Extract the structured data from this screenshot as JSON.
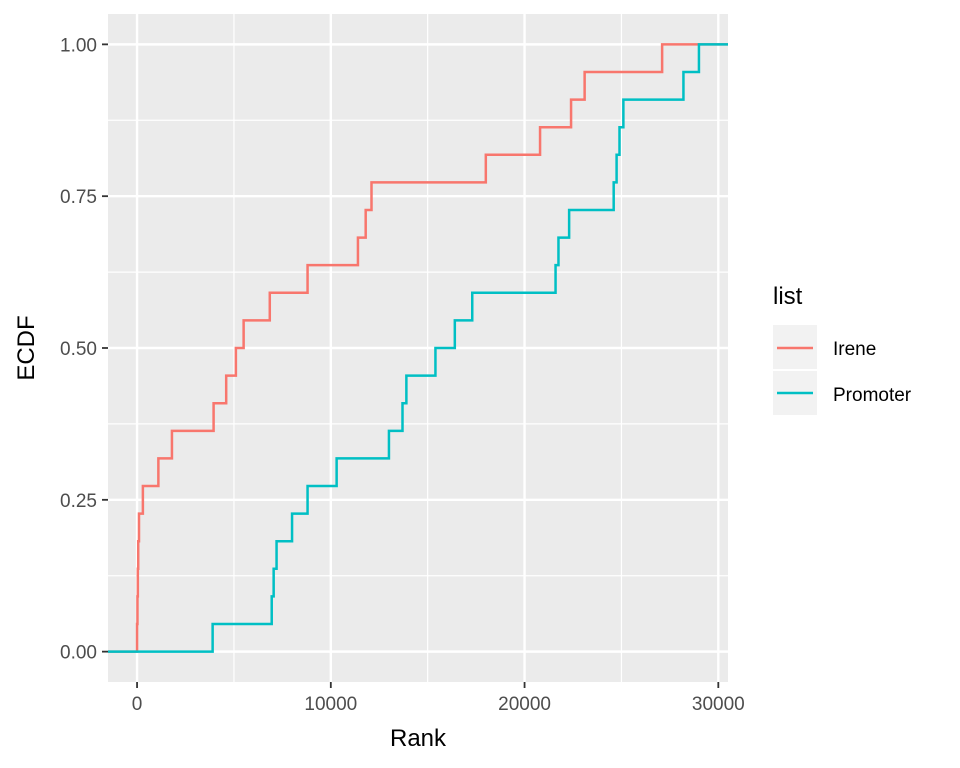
{
  "chart_data": {
    "type": "line",
    "step": true,
    "xlabel": "Rank",
    "ylabel": "ECDF",
    "xlim": [
      -1500,
      30500
    ],
    "ylim": [
      -0.05,
      1.05
    ],
    "x_ticks": [
      0,
      10000,
      20000,
      30000
    ],
    "x_tick_labels": [
      "0",
      "10000",
      "20000",
      "30000"
    ],
    "y_ticks": [
      0,
      0.25,
      0.5,
      0.75,
      1.0
    ],
    "y_tick_labels": [
      "0.00",
      "0.25",
      "0.50",
      "0.75",
      "1.00"
    ],
    "grid": true,
    "panel_background": "#EBEBEB",
    "legend": {
      "title": "list",
      "position": "right"
    },
    "series": [
      {
        "name": "Irene",
        "color": "#F8766D",
        "points": [
          [
            0,
            0.0455
          ],
          [
            20,
            0.0909
          ],
          [
            40,
            0.1364
          ],
          [
            60,
            0.1818
          ],
          [
            100,
            0.2273
          ],
          [
            300,
            0.2727
          ],
          [
            1100,
            0.3182
          ],
          [
            1800,
            0.3636
          ],
          [
            3950,
            0.4091
          ],
          [
            4600,
            0.4545
          ],
          [
            5100,
            0.5
          ],
          [
            5500,
            0.5455
          ],
          [
            6850,
            0.5909
          ],
          [
            8800,
            0.6364
          ],
          [
            11400,
            0.6818
          ],
          [
            11800,
            0.7273
          ],
          [
            12100,
            0.7727
          ],
          [
            18000,
            0.8182
          ],
          [
            20800,
            0.8636
          ],
          [
            22400,
            0.9091
          ],
          [
            23100,
            0.9545
          ],
          [
            27100,
            1.0
          ]
        ]
      },
      {
        "name": "Promoter",
        "color": "#00BFC4",
        "points": [
          [
            3900,
            0.0455
          ],
          [
            6950,
            0.0909
          ],
          [
            7050,
            0.1364
          ],
          [
            7200,
            0.1818
          ],
          [
            8000,
            0.2273
          ],
          [
            8800,
            0.2727
          ],
          [
            10300,
            0.3182
          ],
          [
            13000,
            0.3636
          ],
          [
            13700,
            0.4091
          ],
          [
            13900,
            0.4545
          ],
          [
            15400,
            0.5
          ],
          [
            16400,
            0.5455
          ],
          [
            17300,
            0.5909
          ],
          [
            21600,
            0.6364
          ],
          [
            21750,
            0.6818
          ],
          [
            22300,
            0.7273
          ],
          [
            24600,
            0.7727
          ],
          [
            24750,
            0.8182
          ],
          [
            24900,
            0.8636
          ],
          [
            25100,
            0.9091
          ],
          [
            28200,
            0.9545
          ],
          [
            29000,
            1.0
          ]
        ]
      }
    ]
  }
}
